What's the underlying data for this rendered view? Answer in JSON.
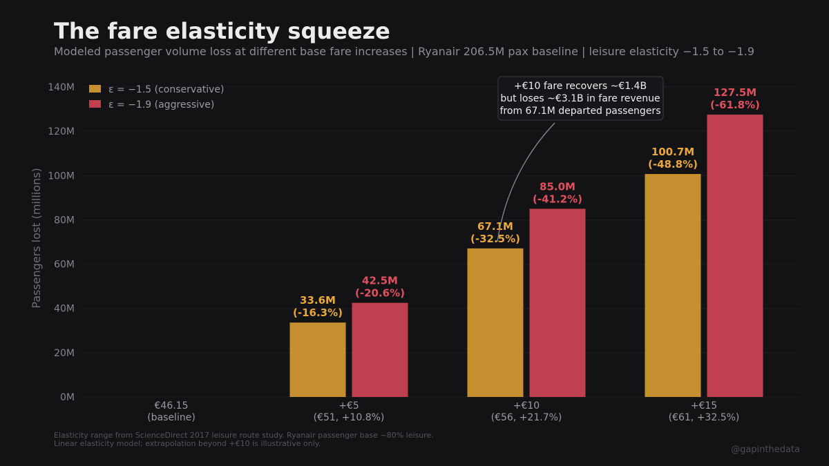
{
  "header": {
    "title": "The fare elasticity squeeze",
    "subtitle": "Modeled passenger volume loss at different base fare increases  |  Ryanair 206.5M pax baseline  |  leisure elasticity −1.5 to −1.9"
  },
  "chart_data": {
    "type": "bar",
    "title": "The fare elasticity squeeze",
    "ylabel": "Passengers lost (millions)",
    "xlabel": "",
    "ylim": [
      0,
      140
    ],
    "yticks": [
      0,
      20,
      40,
      60,
      80,
      100,
      120,
      140
    ],
    "ytick_labels": [
      "0M",
      "20M",
      "40M",
      "60M",
      "80M",
      "100M",
      "120M",
      "140M"
    ],
    "grid": true,
    "legend_position": "top-left",
    "categories": [
      {
        "line1": "€46.15",
        "line2": "(baseline)"
      },
      {
        "line1": "+€5",
        "line2": "(€51, +10.8%)"
      },
      {
        "line1": "+€10",
        "line2": "(€56, +21.7%)"
      },
      {
        "line1": "+€15",
        "line2": "(€61, +32.5%)"
      }
    ],
    "series": [
      {
        "name": "ε = −1.5 (conservative)",
        "color": "#c68f30",
        "label_color": "#e8a83c",
        "values": [
          0,
          33.6,
          67.1,
          100.7
        ],
        "value_labels": [
          "",
          "33.6M",
          "67.1M",
          "100.7M"
        ],
        "pct_labels": [
          "",
          "(-16.3%)",
          "(-32.5%)",
          "(-48.8%)"
        ]
      },
      {
        "name": "ε = −1.9 (aggressive)",
        "color": "#c04050",
        "label_color": "#e0505f",
        "values": [
          0,
          42.5,
          85.0,
          127.5
        ],
        "value_labels": [
          "",
          "42.5M",
          "85.0M",
          "127.5M"
        ],
        "pct_labels": [
          "",
          "(-20.6%)",
          "(-41.2%)",
          "(-61.8%)"
        ]
      }
    ],
    "annotation": {
      "lines": [
        "+€10 fare recovers ~€1.4B",
        "but loses ~€3.1B in fare revenue",
        "from 67.1M departed passengers"
      ],
      "target_category": 2,
      "target_series": 0
    }
  },
  "footnote": {
    "line1": "Elasticity range from ScienceDirect 2017 leisure route study. Ryanair passenger base ~80% leisure.",
    "line2": "Linear elasticity model; extrapolation beyond +€10 is illustrative only."
  },
  "credit": "@gapinthedata"
}
